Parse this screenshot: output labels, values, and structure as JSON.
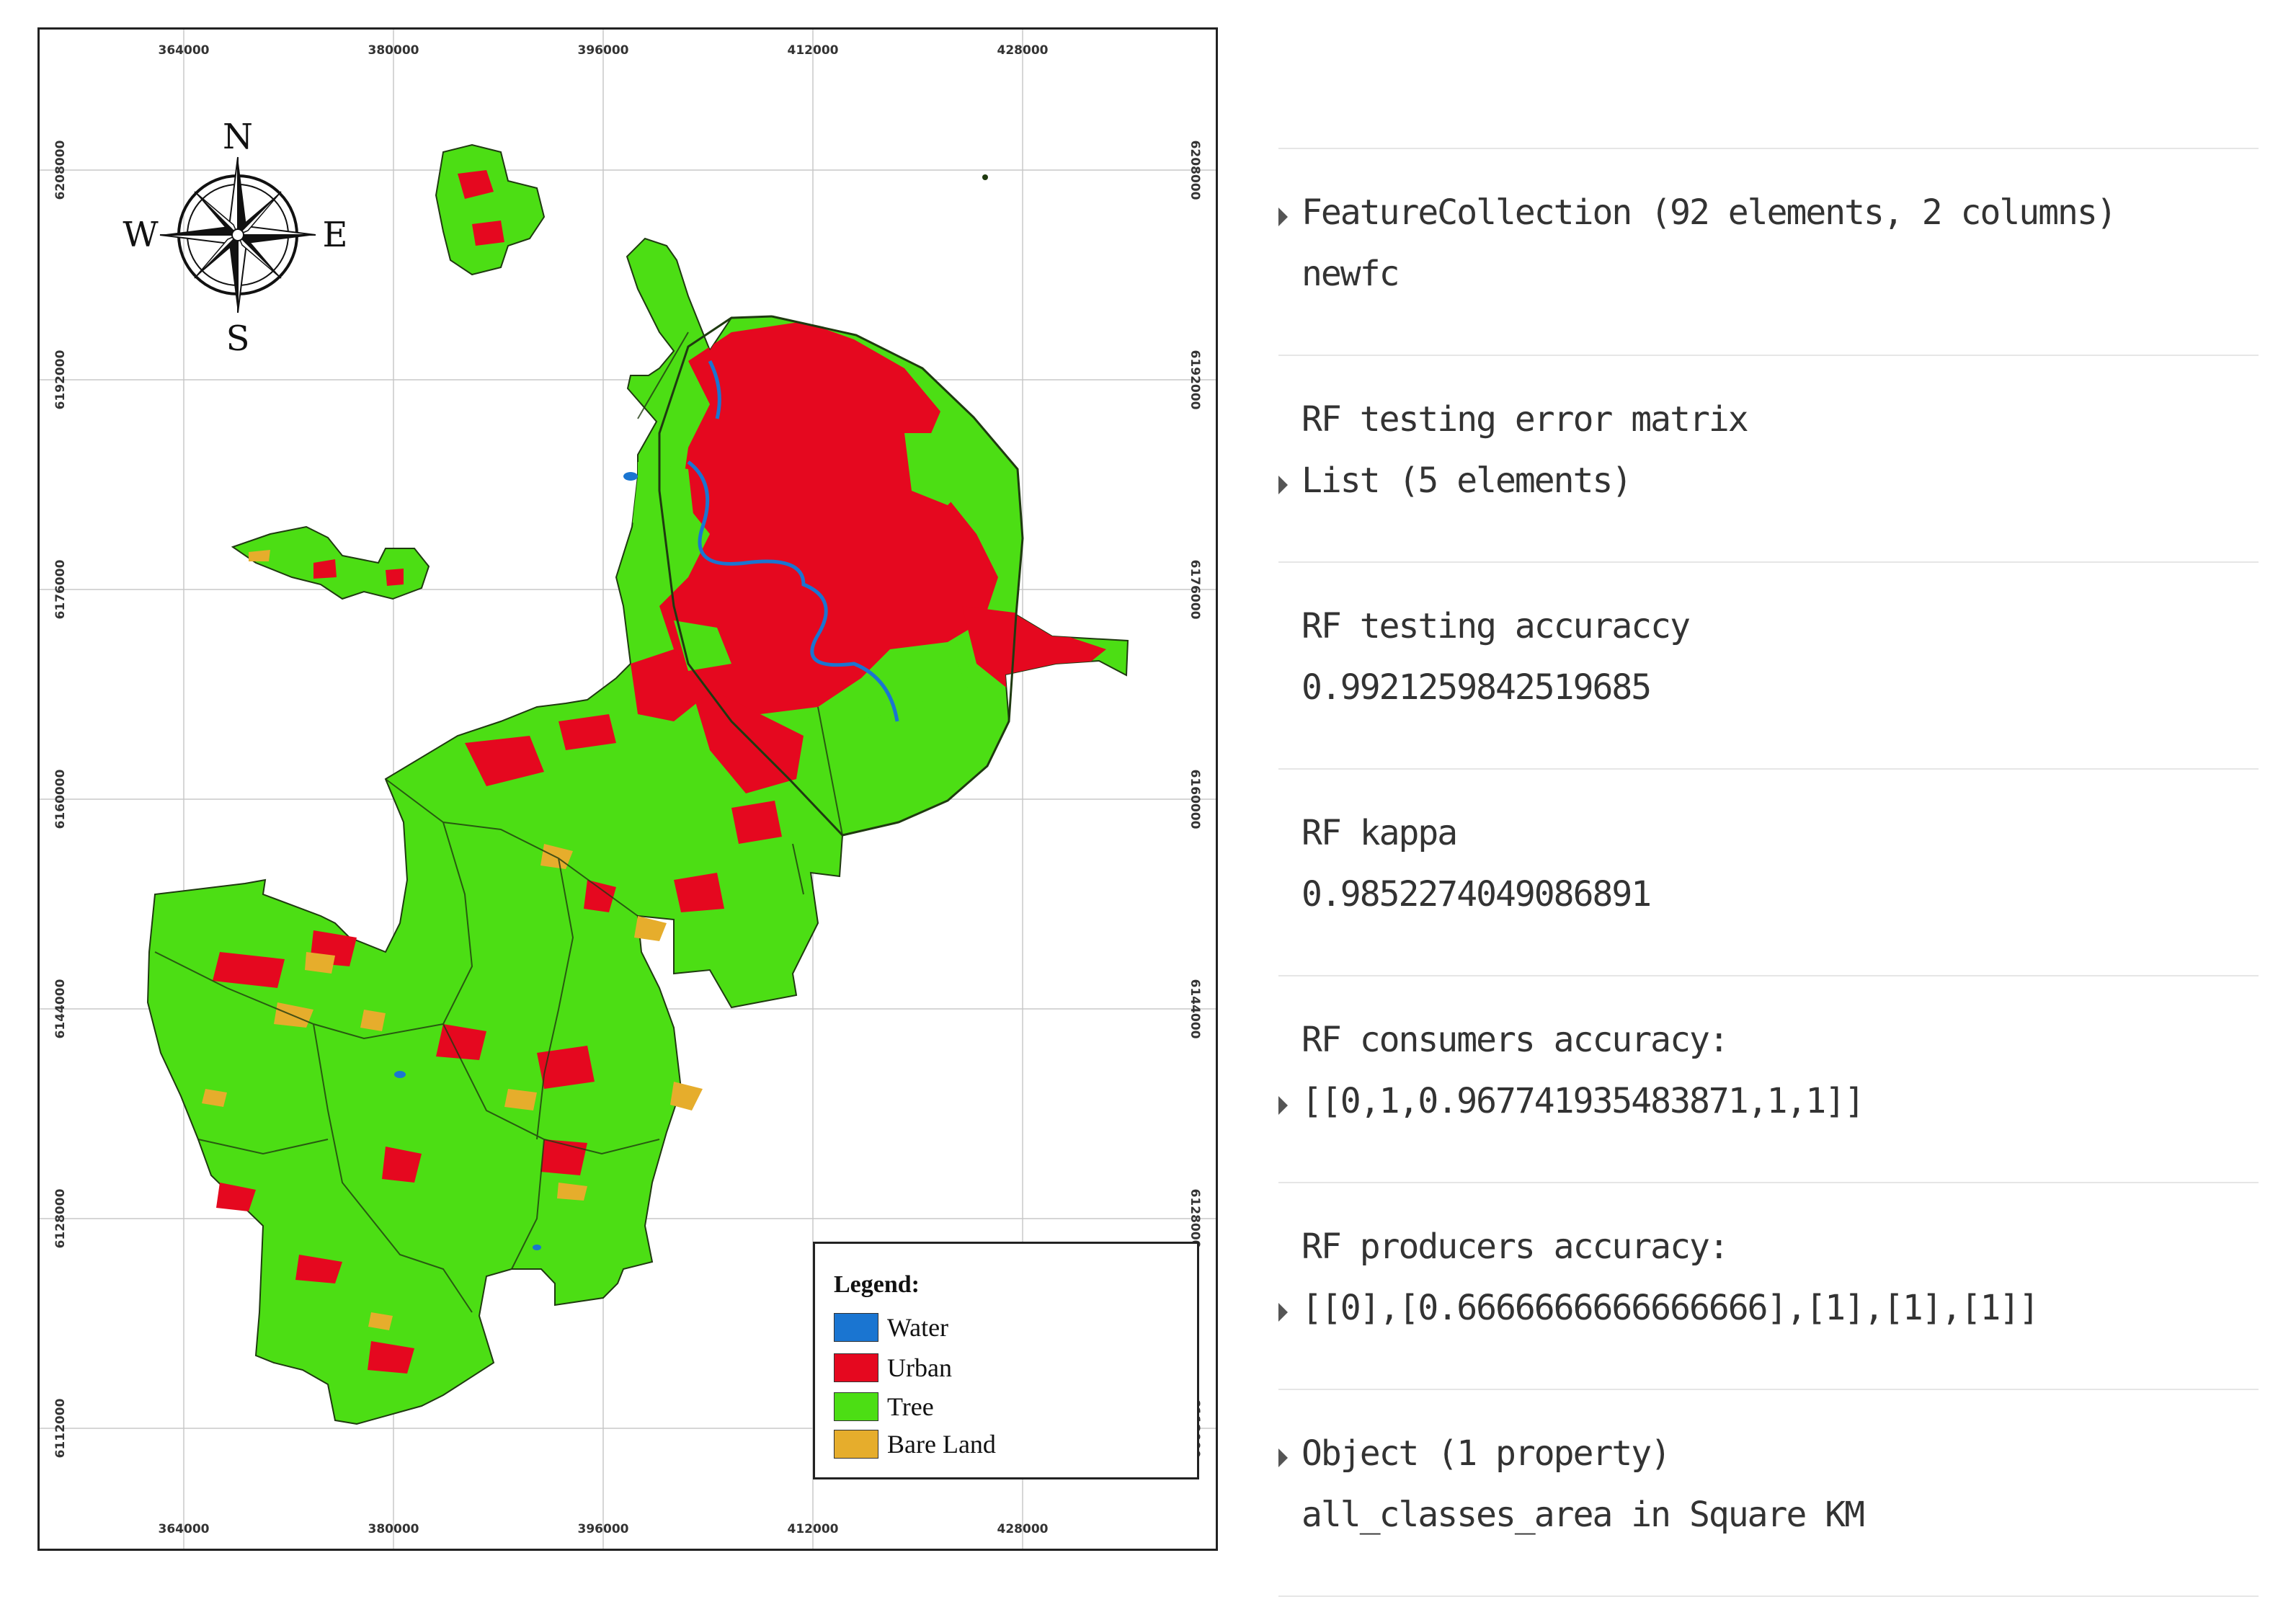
{
  "map": {
    "x_ticks": [
      "364000",
      "380000",
      "396000",
      "412000",
      "428000"
    ],
    "y_ticks": [
      "6208000",
      "6192000",
      "6176000",
      "6160000",
      "6144000",
      "6128000",
      "6112000"
    ],
    "compass": {
      "north": "N",
      "south": "S",
      "east": "E",
      "west": "W"
    },
    "legend": {
      "title": "Legend:",
      "items": [
        {
          "label": "Water",
          "color": "#1a75d1"
        },
        {
          "label": "Urban",
          "color": "#e5081f"
        },
        {
          "label": "Tree",
          "color": "#4cde14"
        },
        {
          "label": "Bare Land",
          "color": "#e6ad2c"
        }
      ]
    },
    "colors": {
      "tree": "#4cde14",
      "urban": "#e5081f",
      "water": "#1a75d1",
      "bare_land": "#e6ad2c",
      "boundary": "#1f3a10"
    }
  },
  "console": {
    "blocks": [
      {
        "line1": "FeatureCollection (92 elements, 2 columns)",
        "line2": "newfc",
        "expander": "line1"
      },
      {
        "line1": "RF testing error matrix",
        "line2": "List (5 elements)",
        "expander": "line2"
      },
      {
        "line1": "RF testing accuraccy",
        "line2": "0.9921259842519685",
        "expander": ""
      },
      {
        "line1": "RF kappa",
        "line2": "0.9852274049086891",
        "expander": ""
      },
      {
        "line1": "RF consumers accuracy:",
        "line2": "[[0,1,0.967741935483871,1,1]]",
        "expander": "line2"
      },
      {
        "line1": "RF producers accuracy:",
        "line2": "[[0],[0.6666666666666666],[1],[1],[1]]",
        "expander": "line2"
      },
      {
        "line1": "Object (1 property)",
        "line2": "all_classes_area in Square KM",
        "expander": "line1"
      }
    ]
  }
}
